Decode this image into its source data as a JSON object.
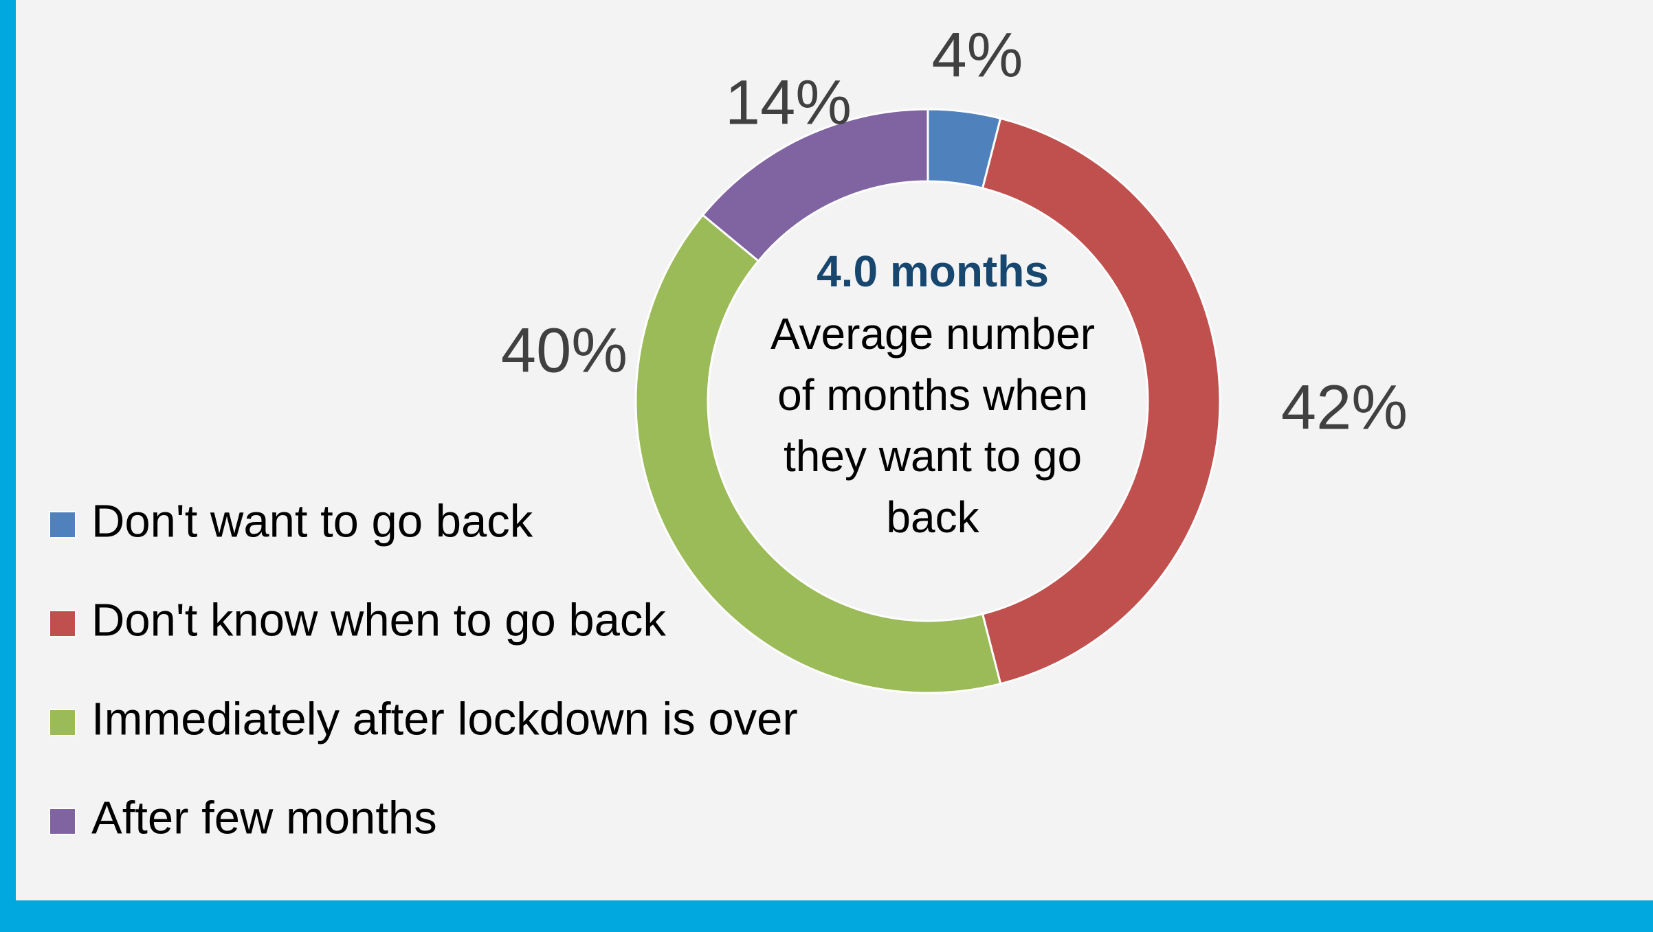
{
  "chart_data": {
    "type": "donut",
    "categories": [
      "Don't want to go back",
      "Don't know when to go back",
      "Immediately after lockdown is over",
      "After few months"
    ],
    "values": [
      4,
      42,
      40,
      14
    ],
    "value_labels": [
      "4%",
      "42%",
      "40%",
      "14%"
    ],
    "colors": [
      "#4f81bd",
      "#c0504d",
      "#9bbb59",
      "#8064a2"
    ],
    "center_value": "4.0 months",
    "center_lines": [
      "Average number",
      "of months when",
      "they want to go",
      "back"
    ],
    "legend": "left"
  }
}
